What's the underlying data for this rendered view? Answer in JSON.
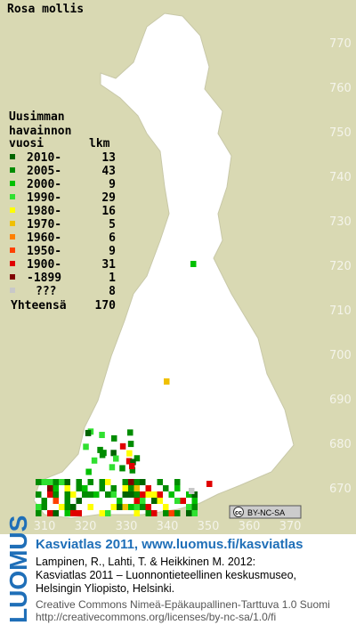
{
  "title": "Rosa mollis",
  "legend": {
    "header": [
      "Uusimman",
      "havainnon"
    ],
    "col_year": "vuosi",
    "col_count": "lkm",
    "rows": [
      {
        "label": "2010-",
        "count": 13,
        "color": "#006400"
      },
      {
        "label": "2005-",
        "count": 43,
        "color": "#008c00"
      },
      {
        "label": "2000-",
        "count": 9,
        "color": "#00c000"
      },
      {
        "label": "1990-",
        "count": 29,
        "color": "#30e030"
      },
      {
        "label": "1980-",
        "count": 16,
        "color": "#ffff00"
      },
      {
        "label": "1970-",
        "count": 5,
        "color": "#f0c000"
      },
      {
        "label": "1960-",
        "count": 6,
        "color": "#ff8000"
      },
      {
        "label": "1950-",
        "count": 9,
        "color": "#ff4000"
      },
      {
        "label": "1900-",
        "count": 31,
        "color": "#e00000"
      },
      {
        "label": "-1899",
        "count": 1,
        "color": "#800000"
      },
      {
        "label": "???",
        "count": 8,
        "color": "#c8c8c8"
      }
    ],
    "total_label": "Yhteensä",
    "total": 170
  },
  "grid": {
    "y_labels": [
      770,
      760,
      750,
      740,
      730,
      720,
      710,
      700,
      690,
      680,
      670
    ],
    "x_labels": [
      310,
      320,
      330,
      340,
      350,
      360,
      370
    ]
  },
  "license_badge": {
    "cc": "cc",
    "text": "BY-NC-SA"
  },
  "footer": {
    "logo": "LUOMUS",
    "title": "Kasviatlas 2011, www.luomus.fi/kasviatlas",
    "citation": [
      "Lampinen, R., Lahti, T. & Heikkinen M. 2012:",
      "Kasviatlas 2011 – Luonnontieteellinen keskusmuseo,",
      "Helsingin Yliopisto, Helsinki."
    ],
    "license": [
      "Creative Commons Nimeä-Epäkaupallinen-Tarttuva 1.0 Suomi",
      "http://creativecommons.org/licenses/by-nc-sa/1.0/fi"
    ]
  }
}
